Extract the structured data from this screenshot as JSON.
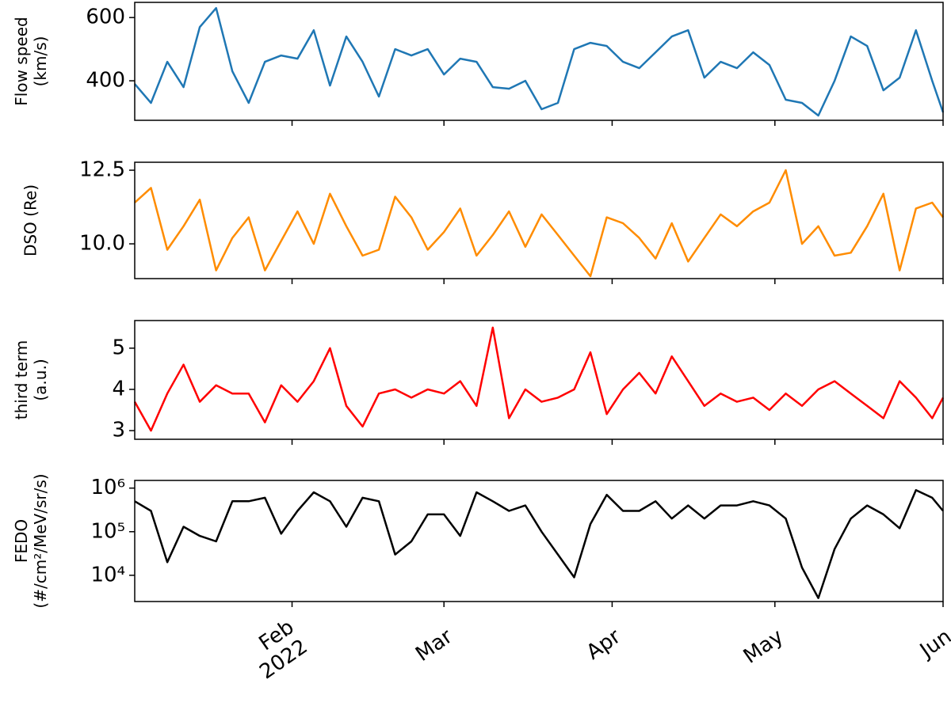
{
  "chart_data": [
    {
      "type": "line",
      "ylabel": "Flow speed\n(km/s)",
      "color": "#1f77b4",
      "x": [
        3,
        6,
        9,
        12,
        15,
        18,
        21,
        24,
        27,
        30,
        33,
        36,
        39,
        42,
        45,
        48,
        51,
        54,
        57,
        60,
        63,
        66,
        69,
        72,
        75,
        78,
        81,
        84,
        87,
        90,
        93,
        96,
        99,
        102,
        105,
        108,
        111,
        114,
        117,
        120,
        123,
        126,
        129,
        132,
        135,
        138,
        141,
        144,
        147,
        150,
        152
      ],
      "values": [
        390,
        330,
        460,
        380,
        570,
        630,
        430,
        330,
        460,
        480,
        470,
        560,
        385,
        540,
        460,
        350,
        500,
        480,
        500,
        420,
        470,
        460,
        380,
        375,
        400,
        310,
        330,
        500,
        520,
        510,
        460,
        440,
        490,
        540,
        560,
        410,
        460,
        440,
        490,
        450,
        340,
        330,
        290,
        400,
        540,
        510,
        370,
        410,
        560,
        400,
        300
      ],
      "xlim": [
        3,
        152
      ],
      "ylim": [
        275,
        648
      ],
      "yticks": [
        400,
        600
      ]
    },
    {
      "type": "line",
      "ylabel": "DSO (Re)",
      "color": "#ff8c00",
      "x": [
        3,
        6,
        9,
        12,
        15,
        18,
        21,
        24,
        27,
        30,
        33,
        36,
        39,
        42,
        45,
        48,
        51,
        54,
        57,
        60,
        63,
        66,
        69,
        72,
        75,
        78,
        81,
        84,
        87,
        90,
        93,
        96,
        99,
        102,
        105,
        108,
        111,
        114,
        117,
        120,
        123,
        126,
        129,
        132,
        135,
        138,
        141,
        144,
        147,
        150,
        152
      ],
      "values": [
        11.4,
        11.9,
        9.8,
        10.6,
        11.5,
        9.1,
        10.2,
        10.9,
        9.1,
        10.1,
        11.1,
        10.0,
        11.7,
        10.6,
        9.6,
        9.8,
        11.6,
        10.9,
        9.8,
        10.4,
        11.2,
        9.6,
        10.3,
        11.1,
        9.9,
        11.0,
        10.3,
        9.6,
        8.9,
        10.9,
        10.7,
        10.2,
        9.5,
        10.7,
        9.4,
        10.2,
        11.0,
        10.6,
        11.1,
        11.4,
        12.5,
        10.0,
        10.6,
        9.6,
        9.7,
        10.6,
        11.7,
        9.1,
        11.2,
        11.4,
        10.9
      ],
      "xlim": [
        3,
        152
      ],
      "ylim": [
        8.82,
        12.77
      ],
      "yticks": [
        {
          "value": 10,
          "label": "10.0"
        },
        {
          "value": 12.5,
          "label": "12.5"
        }
      ]
    },
    {
      "type": "line",
      "ylabel": "third term\n(a.u.)",
      "color": "#ff0000",
      "x": [
        3,
        6,
        9,
        12,
        15,
        18,
        21,
        24,
        27,
        30,
        33,
        36,
        39,
        42,
        45,
        48,
        51,
        54,
        57,
        60,
        63,
        66,
        69,
        72,
        75,
        78,
        81,
        84,
        87,
        90,
        93,
        96,
        99,
        102,
        105,
        108,
        111,
        114,
        117,
        120,
        123,
        126,
        129,
        132,
        135,
        138,
        141,
        144,
        147,
        150,
        152
      ],
      "values": [
        3.7,
        3.0,
        3.9,
        4.6,
        3.7,
        4.1,
        3.9,
        3.9,
        3.2,
        4.1,
        3.7,
        4.2,
        5.0,
        3.6,
        3.1,
        3.9,
        4.0,
        3.8,
        4.0,
        3.9,
        4.2,
        3.6,
        5.5,
        3.3,
        4.0,
        3.7,
        3.8,
        4.0,
        4.9,
        3.4,
        4.0,
        4.4,
        3.9,
        4.8,
        4.2,
        3.6,
        3.9,
        3.7,
        3.8,
        3.5,
        3.9,
        3.6,
        4.0,
        4.2,
        3.9,
        3.6,
        3.3,
        4.2,
        3.8,
        3.3,
        3.8
      ],
      "xlim": [
        3,
        152
      ],
      "ylim": [
        2.79,
        5.67
      ],
      "yticks": [
        3,
        4,
        5
      ]
    },
    {
      "type": "line",
      "ylabel": "FEDO\n(#/cm²/MeV/sr/s)",
      "color": "#000000",
      "log": true,
      "x": [
        3,
        6,
        9,
        12,
        15,
        18,
        21,
        24,
        27,
        30,
        33,
        36,
        39,
        42,
        45,
        48,
        51,
        54,
        57,
        60,
        63,
        66,
        69,
        72,
        75,
        78,
        81,
        84,
        87,
        90,
        93,
        96,
        99,
        102,
        105,
        108,
        111,
        114,
        117,
        120,
        123,
        126,
        129,
        132,
        135,
        138,
        141,
        144,
        147,
        150,
        152
      ],
      "values": [
        500000,
        300000,
        20000,
        130000,
        80000,
        60000,
        500000,
        500000,
        600000,
        90000,
        300000,
        800000,
        500000,
        130000,
        600000,
        500000,
        30000,
        60000,
        250000,
        250000,
        80000,
        800000,
        500000,
        300000,
        400000,
        100000,
        30000,
        9000,
        150000,
        700000,
        300000,
        300000,
        500000,
        200000,
        400000,
        200000,
        400000,
        400000,
        500000,
        400000,
        200000,
        15000,
        3000,
        40000,
        200000,
        400000,
        250000,
        120000,
        900000,
        600000,
        300000
      ],
      "xlim": [
        3,
        152
      ],
      "ylim": [
        2500,
        1500000
      ],
      "yticks": [
        {
          "value": 10000,
          "label": "10⁴"
        },
        {
          "value": 100000,
          "label": "10⁵"
        },
        {
          "value": 1000000,
          "label": "10⁶"
        }
      ],
      "xticks": [
        {
          "value": 32,
          "label": "Feb\n2022"
        },
        {
          "value": 60,
          "label": "Mar"
        },
        {
          "value": 91,
          "label": "Apr"
        },
        {
          "value": 121,
          "label": "May"
        },
        {
          "value": 152,
          "label": "Jun"
        }
      ]
    }
  ]
}
